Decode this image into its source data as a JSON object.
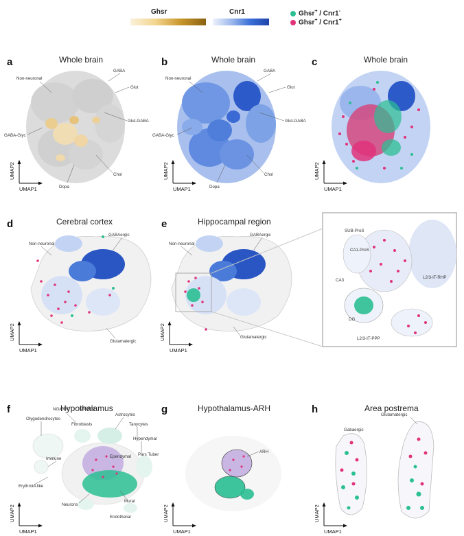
{
  "colors": {
    "ghsr_pos_cnr1_neg": "#2bbf93",
    "ghsr_pos_cnr1_pos": "#e0337a",
    "gray_cluster": "#d7d7d7",
    "cnr1_blue": "#3a6fd8",
    "ghsr_gold": "#c9962c"
  },
  "legend": {
    "ghsr_bar_label": "Ghsr",
    "cnr1_bar_label": "Cnr1",
    "item1_sup_a": "+",
    "item1_sup_b": "-",
    "item2_sup_a": "+",
    "item2_sup_b": "+",
    "item1_prefix": "Ghsr",
    "item1_mid": " / Cnr1",
    "item2_prefix": "Ghsr",
    "item2_mid": " / Cnr1"
  },
  "axes": {
    "y": "UMAP2",
    "x": "UMAP1"
  },
  "panels": {
    "a": {
      "letter": "a",
      "title": "Whole brain",
      "labels": [
        "Non-neuronal",
        "GABA",
        "Glut",
        "Glut-GABA",
        "GABA-Glyc",
        "Chol",
        "Dopa"
      ]
    },
    "b": {
      "letter": "b",
      "title": "Whole brain",
      "labels": [
        "Non-neuronal",
        "GABA",
        "Glut",
        "Glut-GABA",
        "GABA-Glyc",
        "Chol",
        "Dopa"
      ]
    },
    "c": {
      "letter": "c",
      "title": "Whole brain"
    },
    "d": {
      "letter": "d",
      "title": "Cerebral cortex",
      "labels": [
        "Non-neuronal",
        "GABAergic",
        "Glutamatergic"
      ]
    },
    "e": {
      "letter": "e",
      "title": "Hippocampal region",
      "labels": [
        "Non-neuronal",
        "GABAergic",
        "Glutamatergic"
      ],
      "inset_labels": [
        "SUB-ProS",
        "CA1-ProS",
        "CA3",
        "L2/3-IT-RHP",
        "DG",
        "L2/3-IT-PPP"
      ]
    },
    "f": {
      "letter": "f",
      "title": "Hypothalamus",
      "labels": [
        "NG/OPC",
        "Dividing",
        "Olygodendrocytes",
        "Astrocytes",
        "Fibroblasts",
        "Tanycytes",
        "Hypendymal",
        "Immune",
        "Ependymal",
        "Pars Tuber",
        "Erythroid-like",
        "Mural",
        "Neurons",
        "Endothelial"
      ]
    },
    "g": {
      "letter": "g",
      "title": "Hypothalamus-ARH",
      "labels": [
        "ARH"
      ]
    },
    "h": {
      "letter": "h",
      "title": "Area postrema",
      "labels": [
        "Glutamatergic",
        "Gabaergic"
      ]
    }
  }
}
